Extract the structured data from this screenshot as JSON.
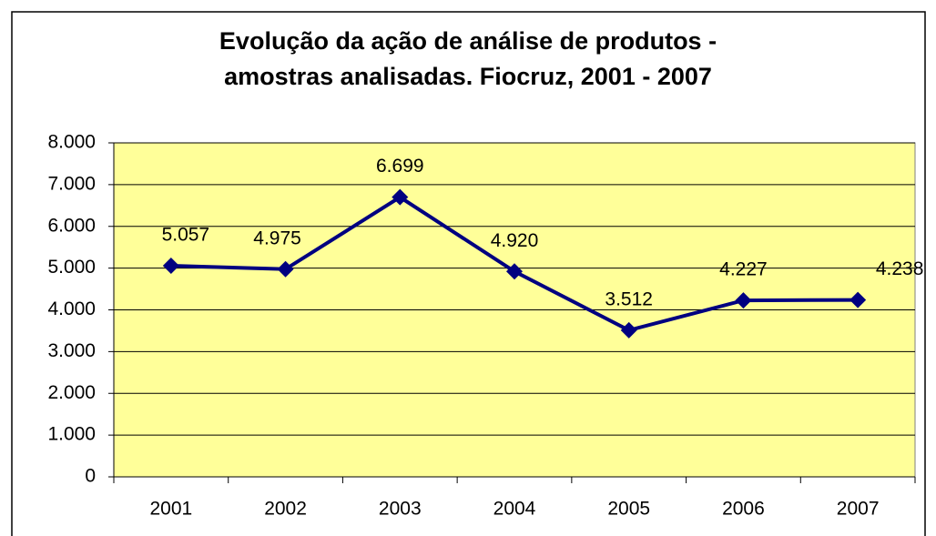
{
  "chart_data": {
    "type": "line",
    "title": [
      "Evolução da ação de análise de produtos -",
      "amostras analisadas. Fiocruz, 2001 - 2007"
    ],
    "categories": [
      "2001",
      "2002",
      "2003",
      "2004",
      "2005",
      "2006",
      "2007"
    ],
    "values": [
      5057,
      4975,
      6699,
      4920,
      3512,
      4227,
      4238
    ],
    "value_labels": [
      "5.057",
      "4.975",
      "6.699",
      "4.920",
      "3.512",
      "4.227",
      "4.238"
    ],
    "color": "#000080",
    "ylim": [
      0,
      8000
    ],
    "yticks": [
      0,
      {
        "value": 1000,
        "label": "1.000"
      },
      {
        "value": 2000,
        "label": "2.000"
      },
      {
        "value": 3000,
        "label": "3.000"
      },
      {
        "value": 4000,
        "label": "4.000"
      },
      {
        "value": 5000,
        "label": "5.000"
      },
      {
        "value": 6000,
        "label": "6.000"
      },
      {
        "value": 7000,
        "label": "7.000"
      },
      {
        "value": 8000,
        "label": "8.000"
      }
    ],
    "grid": true
  }
}
